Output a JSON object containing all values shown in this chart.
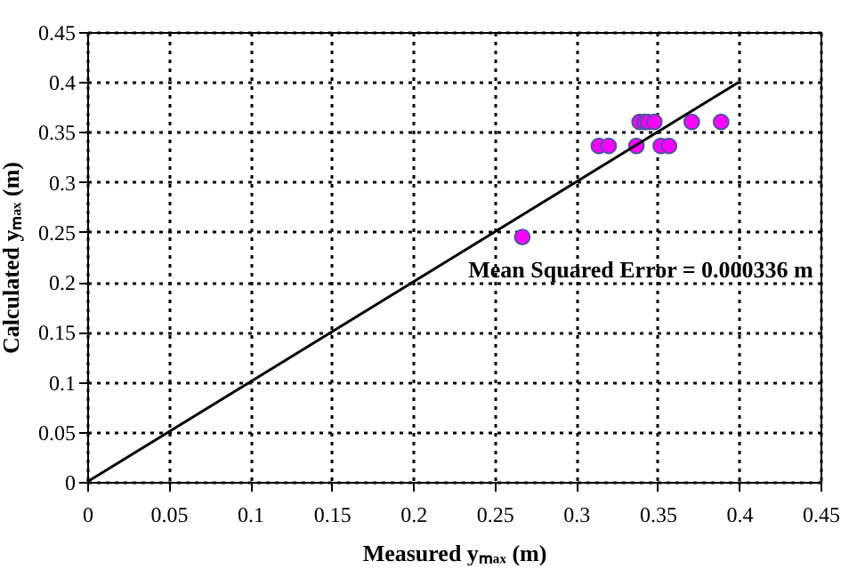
{
  "chart_data": {
    "type": "scatter",
    "xlabel": "Measured yₘₐₓ (m)",
    "ylabel": "Calculated yₘₐₓ (m)",
    "xlim": [
      0,
      0.45
    ],
    "ylim": [
      0,
      0.45
    ],
    "xticks": [
      0,
      0.05,
      0.1,
      0.15,
      0.2,
      0.25,
      0.3,
      0.35,
      0.4,
      0.45
    ],
    "yticks": [
      0,
      0.05,
      0.1,
      0.15,
      0.2,
      0.25,
      0.3,
      0.35,
      0.4,
      0.45
    ],
    "grid": true,
    "series": [
      {
        "type": "scatter",
        "marker": "circle",
        "color": "#ff00ff",
        "x": [
          0.267,
          0.339,
          0.342,
          0.344,
          0.348,
          0.371,
          0.389,
          0.314,
          0.32,
          0.337,
          0.352,
          0.357
        ],
        "values": [
          0.245,
          0.36,
          0.36,
          0.36,
          0.36,
          0.36,
          0.36,
          0.336,
          0.336,
          0.336,
          0.336,
          0.336
        ]
      },
      {
        "type": "line",
        "color": "#000000",
        "x": [
          0,
          0.4
        ],
        "values": [
          0,
          0.4
        ]
      }
    ],
    "annotations": [
      "Mean Squared Error = 0.000336 m"
    ]
  }
}
